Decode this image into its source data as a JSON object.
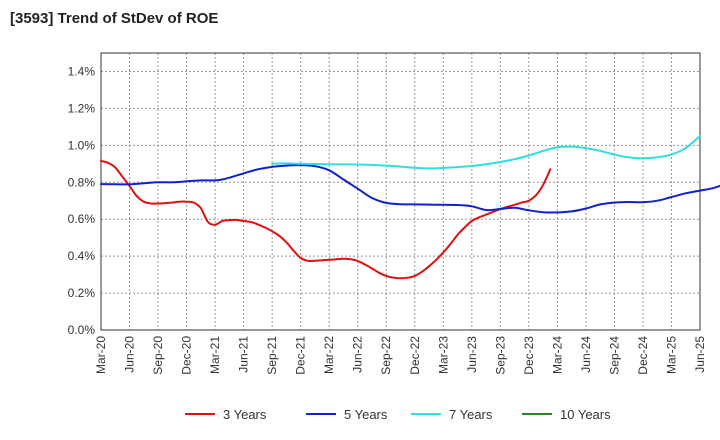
{
  "chart_data": {
    "type": "line",
    "title": "[3593]  Trend of StDev of ROE",
    "x_tick_labels": [
      "Mar-20",
      "Jun-20",
      "Sep-20",
      "Dec-20",
      "Mar-21",
      "Jun-21",
      "Sep-21",
      "Dec-21",
      "Mar-22",
      "Jun-22",
      "Sep-22",
      "Dec-22",
      "Mar-23",
      "Jun-23",
      "Sep-23",
      "Dec-23",
      "Mar-24",
      "Jun-24",
      "Sep-24",
      "Dec-24",
      "Mar-25",
      "Jun-25"
    ],
    "y_tick_labels": [
      "0.0%",
      "0.2%",
      "0.4%",
      "0.6%",
      "0.8%",
      "1.0%",
      "1.2%",
      "1.4%"
    ],
    "ylim": [
      0,
      1.5
    ],
    "y_unit": "%",
    "grid": true,
    "legend_position": "bottom",
    "series": [
      {
        "name": "3 Years",
        "color": "#dd1111",
        "points": [
          [
            0,
            0.915
          ],
          [
            1,
            0.905
          ],
          [
            2,
            0.88
          ],
          [
            3,
            0.83
          ],
          [
            4,
            0.78
          ],
          [
            5,
            0.725
          ],
          [
            6,
            0.695
          ],
          [
            7,
            0.685
          ],
          [
            8,
            0.685
          ],
          [
            9,
            0.687
          ],
          [
            10,
            0.69
          ],
          [
            11,
            0.695
          ],
          [
            12,
            0.695
          ],
          [
            13,
            0.69
          ],
          [
            14,
            0.66
          ],
          [
            15,
            0.585
          ],
          [
            16,
            0.57
          ],
          [
            17,
            0.59
          ],
          [
            18,
            0.595
          ],
          [
            19,
            0.596
          ],
          [
            20,
            0.59
          ],
          [
            21,
            0.585
          ],
          [
            22,
            0.572
          ],
          [
            23,
            0.555
          ],
          [
            24,
            0.535
          ],
          [
            25,
            0.51
          ],
          [
            26,
            0.475
          ],
          [
            27,
            0.43
          ],
          [
            28,
            0.39
          ],
          [
            29,
            0.375
          ],
          [
            30,
            0.375
          ],
          [
            31,
            0.378
          ],
          [
            32,
            0.38
          ],
          [
            33,
            0.383
          ],
          [
            34,
            0.386
          ],
          [
            35,
            0.383
          ],
          [
            36,
            0.374
          ],
          [
            37,
            0.355
          ],
          [
            38,
            0.333
          ],
          [
            39,
            0.31
          ],
          [
            40,
            0.293
          ],
          [
            41,
            0.283
          ],
          [
            42,
            0.28
          ],
          [
            43,
            0.283
          ],
          [
            44,
            0.293
          ],
          [
            45,
            0.315
          ],
          [
            46,
            0.345
          ],
          [
            47,
            0.38
          ],
          [
            48,
            0.42
          ],
          [
            49,
            0.465
          ],
          [
            50,
            0.515
          ],
          [
            51,
            0.555
          ],
          [
            52,
            0.59
          ],
          [
            53,
            0.61
          ],
          [
            54,
            0.625
          ],
          [
            55,
            0.64
          ],
          [
            56,
            0.655
          ],
          [
            57,
            0.667
          ],
          [
            58,
            0.678
          ],
          [
            59,
            0.69
          ],
          [
            60,
            0.7
          ],
          [
            61,
            0.73
          ],
          [
            62,
            0.785
          ],
          [
            63,
            0.87
          ]
        ]
      },
      {
        "name": "5 Years",
        "color": "#1122cc",
        "points": [
          [
            0,
            0.79
          ],
          [
            2,
            0.789
          ],
          [
            4,
            0.789
          ],
          [
            6,
            0.795
          ],
          [
            8,
            0.8
          ],
          [
            10,
            0.8
          ],
          [
            12,
            0.805
          ],
          [
            14,
            0.81
          ],
          [
            16,
            0.81
          ],
          [
            17,
            0.815
          ],
          [
            18,
            0.825
          ],
          [
            20,
            0.848
          ],
          [
            22,
            0.87
          ],
          [
            24,
            0.883
          ],
          [
            26,
            0.89
          ],
          [
            28,
            0.893
          ],
          [
            30,
            0.887
          ],
          [
            32,
            0.865
          ],
          [
            34,
            0.815
          ],
          [
            36,
            0.765
          ],
          [
            38,
            0.715
          ],
          [
            40,
            0.688
          ],
          [
            42,
            0.681
          ],
          [
            44,
            0.68
          ],
          [
            46,
            0.679
          ],
          [
            48,
            0.678
          ],
          [
            50,
            0.677
          ],
          [
            52,
            0.67
          ],
          [
            54,
            0.65
          ],
          [
            56,
            0.655
          ],
          [
            58,
            0.662
          ],
          [
            60,
            0.648
          ],
          [
            62,
            0.638
          ],
          [
            64,
            0.637
          ],
          [
            66,
            0.642
          ],
          [
            68,
            0.658
          ],
          [
            70,
            0.68
          ],
          [
            72,
            0.69
          ],
          [
            74,
            0.693
          ],
          [
            76,
            0.692
          ],
          [
            78,
            0.7
          ],
          [
            80,
            0.72
          ],
          [
            82,
            0.74
          ],
          [
            84,
            0.755
          ],
          [
            86,
            0.77
          ],
          [
            88,
            0.8
          ],
          [
            90,
            0.84
          ],
          [
            92,
            0.89
          ]
        ]
      },
      {
        "name": "7 Years",
        "color": "#33dddd",
        "points": [
          [
            24,
            0.9
          ],
          [
            26,
            0.902
          ],
          [
            28,
            0.9
          ],
          [
            30,
            0.899
          ],
          [
            32,
            0.898
          ],
          [
            34,
            0.897
          ],
          [
            36,
            0.896
          ],
          [
            38,
            0.894
          ],
          [
            40,
            0.89
          ],
          [
            42,
            0.885
          ],
          [
            44,
            0.878
          ],
          [
            46,
            0.875
          ],
          [
            48,
            0.878
          ],
          [
            50,
            0.882
          ],
          [
            52,
            0.888
          ],
          [
            54,
            0.898
          ],
          [
            56,
            0.91
          ],
          [
            58,
            0.925
          ],
          [
            60,
            0.945
          ],
          [
            62,
            0.97
          ],
          [
            64,
            0.99
          ],
          [
            66,
            0.993
          ],
          [
            68,
            0.985
          ],
          [
            70,
            0.97
          ],
          [
            72,
            0.95
          ],
          [
            74,
            0.935
          ],
          [
            76,
            0.93
          ],
          [
            78,
            0.935
          ],
          [
            80,
            0.95
          ],
          [
            82,
            0.985
          ],
          [
            84,
            1.05
          ]
        ]
      },
      {
        "name": "10 Years",
        "color": "#228822",
        "points": []
      }
    ]
  }
}
